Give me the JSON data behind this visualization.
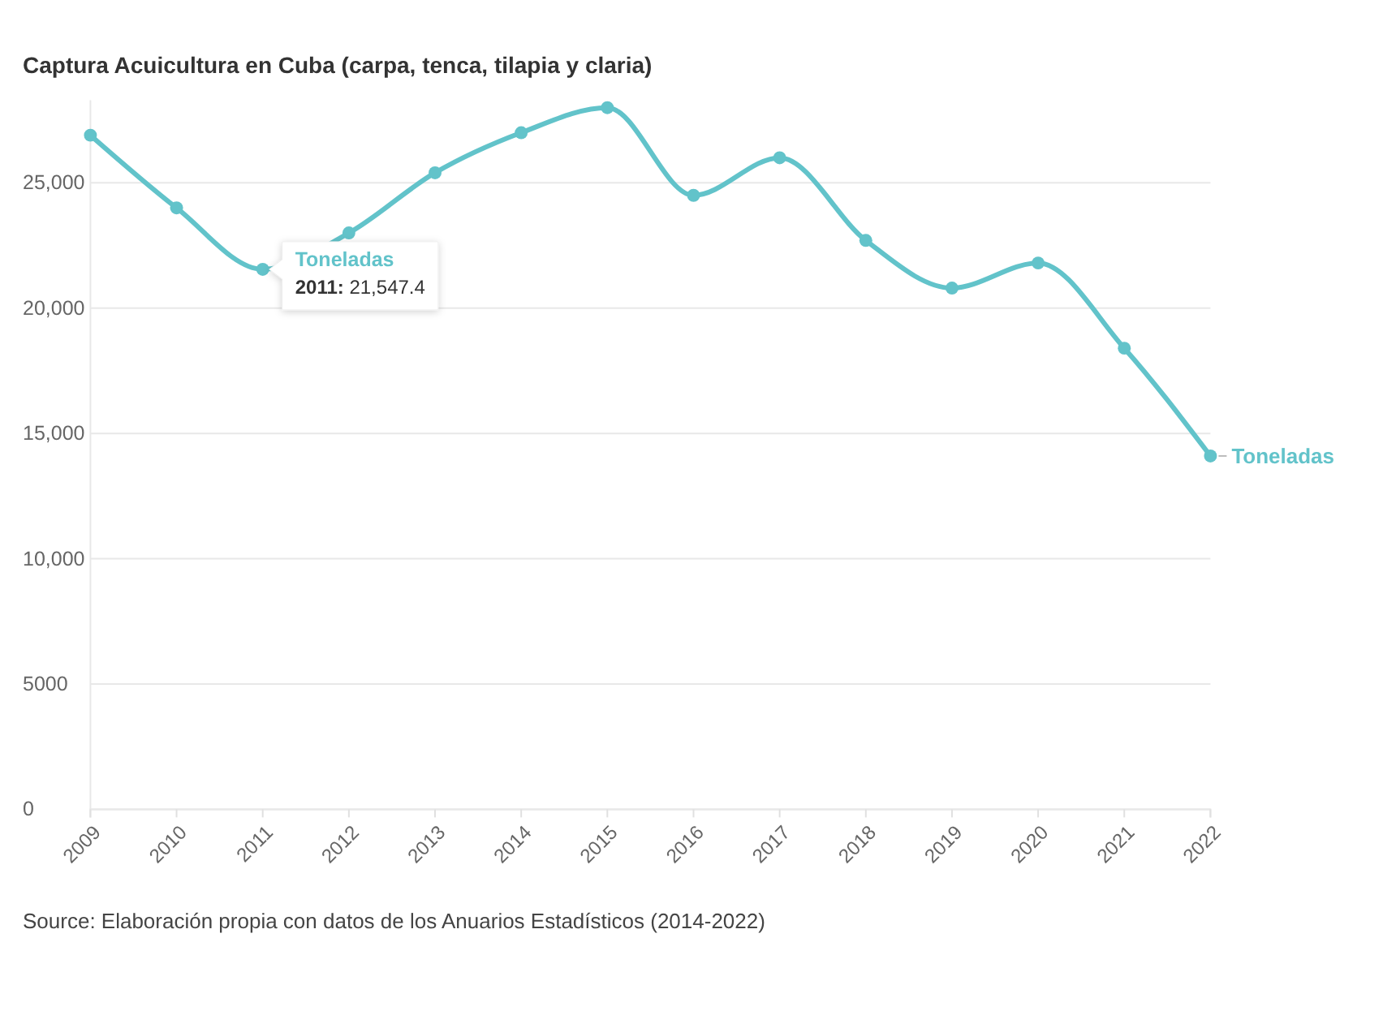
{
  "chart_data": {
    "type": "line",
    "title": "Captura Acuicultura en Cuba (carpa, tenca, tilapia y claria)",
    "categories": [
      "2009",
      "2010",
      "2011",
      "2012",
      "2013",
      "2014",
      "2015",
      "2016",
      "2017",
      "2018",
      "2019",
      "2020",
      "2021",
      "2022"
    ],
    "series": [
      {
        "name": "Toneladas",
        "color": "#62c3ca",
        "values": [
          26900,
          24000,
          21547.4,
          23000,
          25400,
          27000,
          28000,
          24500,
          26000,
          22700,
          20800,
          21800,
          18400,
          14100
        ]
      }
    ],
    "ylim": [
      0,
      28300
    ],
    "yticks": [
      0,
      5000,
      {
        "value": 10000,
        "label": "10,000"
      },
      {
        "value": 15000,
        "label": "15,000"
      },
      {
        "value": 20000,
        "label": "20,000"
      },
      {
        "value": 25000,
        "label": "25,000"
      }
    ],
    "grid": "y",
    "marker": "circle",
    "line_style": "solid",
    "annotations": [
      {
        "text": "2011: 21,547.4",
        "x": "2011",
        "y": 21547.4
      },
      "Source: Elaboración propia con datos de los Anuarios Estadísticos (2014-2022)"
    ]
  }
}
